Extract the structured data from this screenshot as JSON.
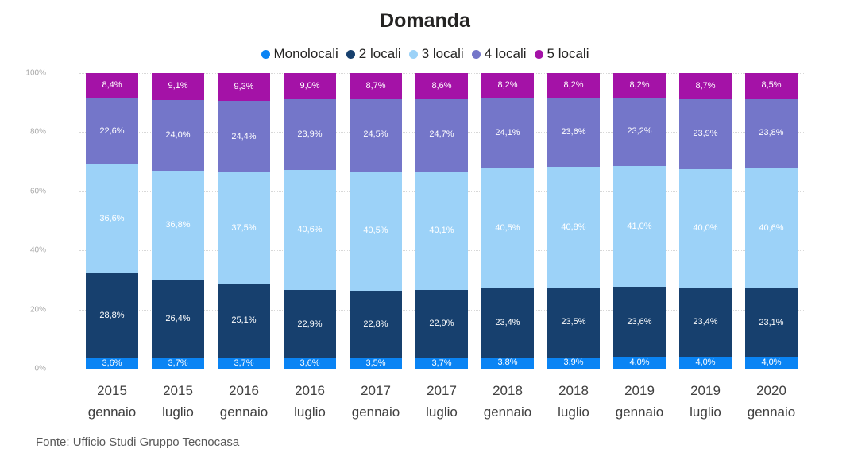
{
  "title": "Domanda",
  "footer": "Fonte: Ufficio Studi Gruppo Tecnocasa",
  "chart_data": {
    "type": "bar",
    "stacked": true,
    "percent_stacked": true,
    "title": "Domanda",
    "xlabel": "",
    "ylabel": "",
    "ylim": [
      0,
      100
    ],
    "y_ticks": [
      "0%",
      "20%",
      "40%",
      "60%",
      "80%",
      "100%"
    ],
    "grid": "dotted-horizontal",
    "legend_position": "top",
    "value_format": "comma-decimal-percent",
    "categories": [
      {
        "year": "2015",
        "month": "gennaio"
      },
      {
        "year": "2015",
        "month": "luglio"
      },
      {
        "year": "2016",
        "month": "gennaio"
      },
      {
        "year": "2016",
        "month": "luglio"
      },
      {
        "year": "2017",
        "month": "gennaio"
      },
      {
        "year": "2017",
        "month": "luglio"
      },
      {
        "year": "2018",
        "month": "gennaio"
      },
      {
        "year": "2018",
        "month": "luglio"
      },
      {
        "year": "2019",
        "month": "gennaio"
      },
      {
        "year": "2019",
        "month": "luglio"
      },
      {
        "year": "2020",
        "month": "gennaio"
      }
    ],
    "series": [
      {
        "name": "Monolocali",
        "color": "#0a84f4",
        "values": [
          3.6,
          3.7,
          3.7,
          3.6,
          3.5,
          3.7,
          3.8,
          3.9,
          4.0,
          4.0,
          4.0
        ]
      },
      {
        "name": "2 locali",
        "color": "#17406e",
        "values": [
          28.8,
          26.4,
          25.1,
          22.9,
          22.8,
          22.9,
          23.4,
          23.5,
          23.6,
          23.4,
          23.1
        ]
      },
      {
        "name": "3 locali",
        "color": "#9cd2f8",
        "values": [
          36.6,
          36.8,
          37.5,
          40.6,
          40.5,
          40.1,
          40.5,
          40.8,
          41.0,
          40.0,
          40.6
        ]
      },
      {
        "name": "4 locali",
        "color": "#7476c9",
        "values": [
          22.6,
          24.0,
          24.4,
          23.9,
          24.5,
          24.7,
          24.1,
          23.6,
          23.2,
          23.9,
          23.8
        ]
      },
      {
        "name": "5 locali",
        "color": "#a412a7",
        "values": [
          8.4,
          9.1,
          9.3,
          9.0,
          8.7,
          8.6,
          8.2,
          8.2,
          8.2,
          8.7,
          8.5
        ]
      }
    ]
  }
}
